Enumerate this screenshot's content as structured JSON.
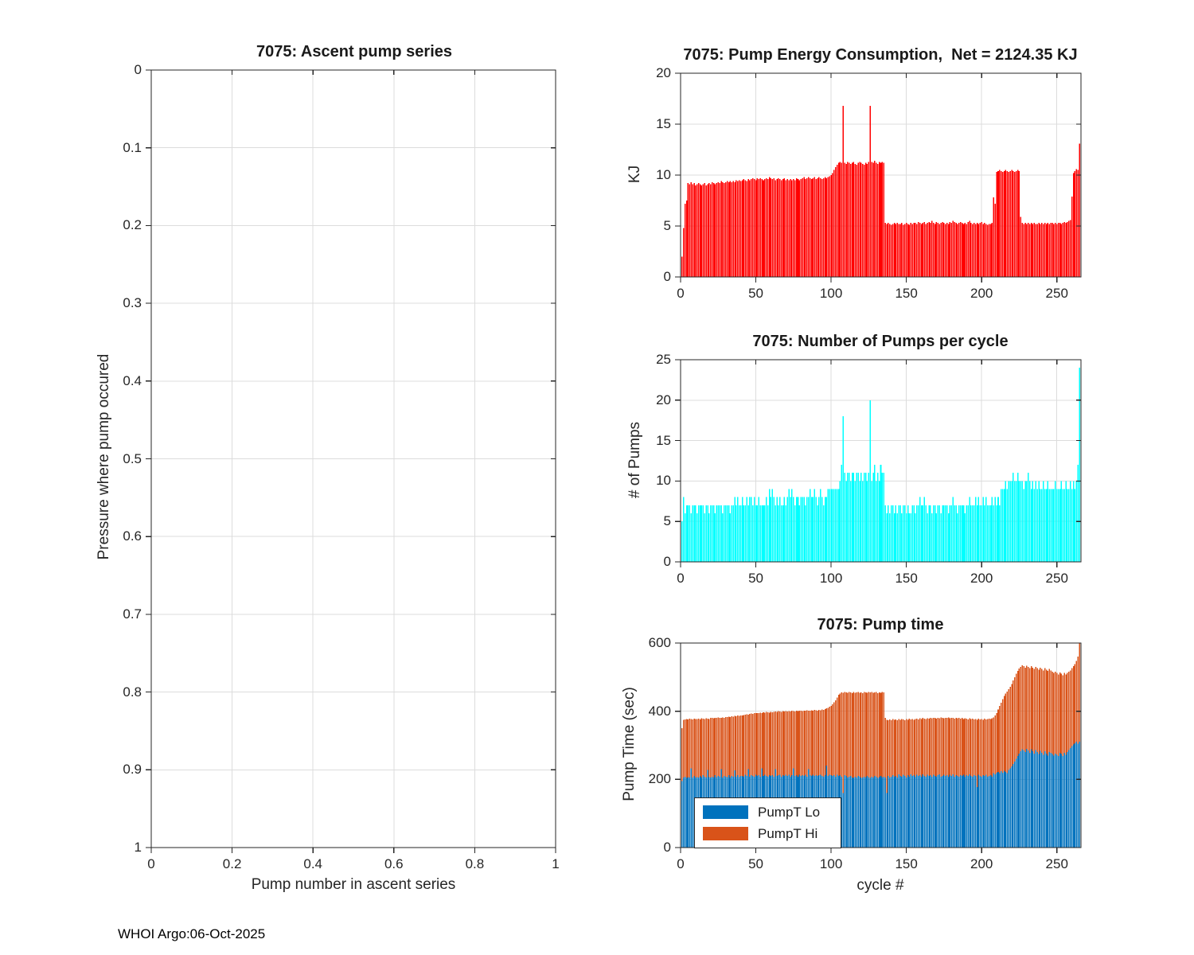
{
  "figure": {
    "footer": "WHOI Argo:06-Oct-2025",
    "colors": {
      "red": "#FF0000",
      "cyan": "#00FFFF",
      "blue": "#0072BD",
      "orange": "#D95319",
      "grid": "#DCDCDC",
      "axis": "#262626",
      "background": "#FFFFFF"
    }
  },
  "chart_data": [
    {
      "id": "ascent",
      "type": "bar",
      "title": "7075: Ascent pump series",
      "xlabel": "Pump number in ascent series",
      "ylabel": "Pressure where pump occured",
      "xlim": [
        0,
        1
      ],
      "ylim": [
        0,
        1
      ],
      "y_reversed": true,
      "grid": true,
      "xticks": [
        0,
        0.2,
        0.4,
        0.6,
        0.8,
        1
      ],
      "xtick_labels": [
        "0",
        "0.2",
        "0.4",
        "0.6",
        "0.8",
        "1"
      ],
      "yticks": [
        0,
        0.1,
        0.2,
        0.3,
        0.4,
        0.5,
        0.6,
        0.7,
        0.8,
        0.9,
        1
      ],
      "ytick_labels": [
        "0",
        "0.1",
        "0.2",
        "0.3",
        "0.4",
        "0.5",
        "0.6",
        "0.7",
        "0.8",
        "0.9",
        "1"
      ],
      "values": []
    },
    {
      "id": "energy",
      "type": "bar",
      "title": "7075: Pump Energy Consumption,  Net = 2124.35 KJ",
      "net_kj": 2124.35,
      "xlabel": "",
      "ylabel": "KJ",
      "xlim": [
        0,
        266
      ],
      "ylim": [
        0,
        20
      ],
      "grid": true,
      "bar_color": "#FF0000",
      "xticks": [
        0,
        50,
        100,
        150,
        200,
        250
      ],
      "xtick_labels": [
        "0",
        "50",
        "100",
        "150",
        "200",
        "250"
      ],
      "yticks": [
        0,
        5,
        10,
        15,
        20
      ],
      "ytick_labels": [
        "0",
        "5",
        "10",
        "15",
        "20"
      ],
      "values": [
        2.0,
        4.8,
        7.2,
        7.5,
        9.2,
        9.1,
        9.3,
        9.1,
        9.2,
        9.0,
        9.1,
        9.2,
        9.1,
        9.0,
        9.1,
        9.2,
        9.0,
        9.1,
        9.2,
        9.1,
        9.3,
        9.2,
        9.1,
        9.2,
        9.3,
        9.2,
        9.4,
        9.3,
        9.2,
        9.3,
        9.4,
        9.3,
        9.4,
        9.3,
        9.4,
        9.3,
        9.5,
        9.4,
        9.5,
        9.4,
        9.5,
        9.6,
        9.5,
        9.4,
        9.6,
        9.5,
        9.6,
        9.7,
        9.6,
        9.5,
        9.7,
        9.6,
        9.7,
        9.6,
        9.5,
        9.6,
        9.7,
        9.6,
        9.8,
        9.7,
        9.6,
        9.7,
        9.5,
        9.6,
        9.7,
        9.6,
        9.5,
        9.6,
        9.7,
        9.5,
        9.6,
        9.5,
        9.6,
        9.5,
        9.6,
        9.5,
        9.7,
        9.6,
        9.5,
        9.6,
        9.7,
        9.8,
        9.6,
        9.7,
        9.8,
        9.7,
        9.6,
        9.7,
        9.8,
        9.6,
        9.7,
        9.8,
        9.7,
        9.6,
        9.7,
        9.8,
        9.7,
        9.8,
        9.9,
        10.0,
        10.2,
        10.5,
        10.8,
        11.0,
        11.2,
        11.3,
        11.2,
        16.8,
        11.2,
        11.1,
        11.3,
        11.2,
        11.1,
        11.2,
        11.3,
        11.1,
        11.0,
        11.2,
        11.3,
        11.2,
        11.1,
        11.0,
        11.2,
        11.1,
        11.3,
        16.8,
        11.3,
        11.2,
        11.4,
        11.2,
        11.1,
        11.3,
        11.2,
        11.3,
        11.2,
        5.3,
        5.2,
        5.3,
        5.2,
        5.1,
        5.2,
        5.3,
        5.2,
        5.3,
        5.2,
        5.2,
        5.3,
        5.1,
        5.2,
        5.3,
        5.2,
        5.1,
        5.3,
        5.2,
        5.3,
        5.3,
        5.2,
        5.4,
        5.3,
        5.2,
        5.3,
        5.4,
        5.2,
        5.3,
        5.4,
        5.3,
        5.5,
        5.3,
        5.2,
        5.4,
        5.3,
        5.2,
        5.3,
        5.4,
        5.3,
        5.2,
        5.3,
        5.2,
        5.4,
        5.3,
        5.5,
        5.4,
        5.3,
        5.2,
        5.3,
        5.4,
        5.3,
        5.2,
        5.3,
        5.2,
        5.4,
        5.5,
        5.3,
        5.2,
        5.3,
        5.2,
        5.3,
        5.2,
        5.3,
        5.4,
        5.2,
        5.3,
        5.2,
        5.1,
        5.2,
        5.2,
        5.3,
        7.8,
        7.2,
        10.3,
        10.4,
        10.5,
        10.4,
        10.3,
        10.4,
        10.5,
        10.4,
        10.3,
        10.4,
        10.5,
        10.4,
        10.3,
        10.4,
        10.5,
        10.4,
        5.9,
        5.3,
        5.2,
        5.3,
        5.2,
        5.3,
        5.2,
        5.3,
        5.2,
        5.3,
        5.2,
        5.2,
        5.3,
        5.2,
        5.3,
        5.2,
        5.3,
        5.2,
        5.3,
        5.2,
        5.3,
        5.3,
        5.2,
        5.3,
        5.2,
        5.3,
        5.3,
        5.2,
        5.3,
        5.4,
        5.3,
        5.4,
        5.5,
        5.6,
        7.9,
        10.2,
        10.4,
        10.6,
        10.5,
        13.1
      ]
    },
    {
      "id": "pumps",
      "type": "bar",
      "title": "7075: Number of Pumps per cycle",
      "xlabel": "",
      "ylabel": "# of Pumps",
      "xlim": [
        0,
        266
      ],
      "ylim": [
        0,
        25
      ],
      "grid": true,
      "bar_color": "#00FFFF",
      "xticks": [
        0,
        50,
        100,
        150,
        200,
        250
      ],
      "xtick_labels": [
        "0",
        "50",
        "100",
        "150",
        "200",
        "250"
      ],
      "yticks": [
        0,
        5,
        10,
        15,
        20,
        25
      ],
      "ytick_labels": [
        "0",
        "5",
        "10",
        "15",
        "20",
        "25"
      ],
      "values": [
        5,
        8,
        6,
        7,
        7,
        7,
        6,
        7,
        7,
        7,
        6,
        7,
        7,
        7,
        7,
        6,
        7,
        7,
        6,
        7,
        7,
        7,
        6,
        7,
        7,
        7,
        7,
        6,
        7,
        7,
        7,
        7,
        6,
        7,
        7,
        8,
        7,
        8,
        7,
        7,
        8,
        7,
        7,
        8,
        7,
        8,
        8,
        7,
        8,
        7,
        7,
        8,
        7,
        7,
        7,
        7,
        8,
        7,
        9,
        8,
        9,
        8,
        7,
        8,
        7,
        8,
        7,
        7,
        8,
        7,
        8,
        9,
        8,
        9,
        8,
        7,
        8,
        8,
        7,
        8,
        8,
        8,
        7,
        8,
        8,
        9,
        8,
        8,
        9,
        8,
        7,
        8,
        9,
        8,
        7,
        8,
        8,
        9,
        9,
        9,
        9,
        9,
        9,
        9,
        9,
        10,
        12,
        18,
        11,
        10,
        11,
        11,
        10,
        11,
        11,
        10,
        11,
        11,
        10,
        11,
        10,
        11,
        11,
        10,
        11,
        20,
        10,
        11,
        12,
        10,
        11,
        10,
        12,
        11,
        11,
        7,
        6,
        7,
        6,
        7,
        7,
        6,
        7,
        6,
        7,
        7,
        6,
        7,
        7,
        6,
        7,
        6,
        6,
        7,
        7,
        6,
        7,
        7,
        8,
        7,
        7,
        8,
        7,
        6,
        7,
        7,
        6,
        7,
        7,
        6,
        7,
        7,
        6,
        7,
        7,
        7,
        7,
        6,
        7,
        7,
        8,
        7,
        7,
        6,
        7,
        7,
        7,
        7,
        6,
        7,
        7,
        8,
        7,
        7,
        7,
        8,
        7,
        8,
        7,
        7,
        8,
        7,
        8,
        7,
        7,
        7,
        8,
        7,
        8,
        7,
        8,
        7,
        9,
        9,
        9,
        10,
        9,
        10,
        10,
        10,
        11,
        10,
        10,
        11,
        10,
        10,
        10,
        9,
        10,
        10,
        11,
        10,
        9,
        10,
        9,
        10,
        9,
        10,
        9,
        9,
        10,
        9,
        9,
        10,
        9,
        9,
        9,
        9,
        10,
        9,
        9,
        9,
        10,
        9,
        9,
        10,
        9,
        9,
        10,
        9,
        10,
        9,
        10,
        12,
        24
      ]
    },
    {
      "id": "pumptime",
      "type": "stacked",
      "title": "7075: Pump time",
      "xlabel": "cycle #",
      "ylabel": "Pump Time (sec)",
      "xlim": [
        0,
        266
      ],
      "ylim": [
        0,
        600
      ],
      "grid": true,
      "xticks": [
        0,
        50,
        100,
        150,
        200,
        250
      ],
      "xtick_labels": [
        "0",
        "50",
        "100",
        "150",
        "200",
        "250"
      ],
      "yticks": [
        0,
        200,
        400,
        600
      ],
      "ytick_labels": [
        "0",
        "200",
        "400",
        "600"
      ],
      "legend": {
        "position": "lower-left",
        "entries": [
          "PumpT Lo",
          "PumpT Hi"
        ]
      },
      "series": [
        {
          "name": "PumpT Lo",
          "color": "#0072BD",
          "values": [
            195,
            205,
            208,
            204,
            207,
            205,
            232,
            206,
            210,
            205,
            207,
            206,
            210,
            205,
            212,
            208,
            206,
            228,
            207,
            205,
            208,
            206,
            212,
            207,
            210,
            208,
            230,
            206,
            210,
            208,
            207,
            212,
            206,
            210,
            208,
            226,
            208,
            212,
            207,
            210,
            210,
            208,
            214,
            210,
            230,
            208,
            212,
            210,
            208,
            214,
            210,
            212,
            208,
            232,
            210,
            214,
            210,
            208,
            212,
            210,
            212,
            208,
            230,
            210,
            212,
            214,
            208,
            212,
            210,
            214,
            210,
            214,
            208,
            212,
            232,
            210,
            212,
            208,
            214,
            210,
            212,
            210,
            214,
            208,
            230,
            212,
            210,
            214,
            210,
            212,
            210,
            212,
            214,
            210,
            208,
            212,
            240,
            210,
            214,
            212,
            210,
            212,
            208,
            214,
            210,
            212,
            208,
            160,
            212,
            210,
            205,
            208,
            210,
            206,
            204,
            208,
            206,
            210,
            208,
            204,
            206,
            208,
            205,
            210,
            207,
            204,
            208,
            206,
            210,
            208,
            204,
            207,
            210,
            206,
            208,
            205,
            160,
            210,
            206,
            208,
            212,
            208,
            210,
            206,
            215,
            210,
            208,
            214,
            210,
            206,
            212,
            208,
            215,
            210,
            212,
            208,
            214,
            210,
            212,
            208,
            215,
            210,
            208,
            214,
            210,
            212,
            208,
            214,
            210,
            208,
            212,
            215,
            208,
            210,
            214,
            210,
            212,
            208,
            214,
            210,
            215,
            208,
            212,
            210,
            208,
            212,
            210,
            214,
            208,
            212,
            210,
            215,
            210,
            208,
            212,
            210,
            178,
            214,
            210,
            208,
            212,
            210,
            214,
            208,
            210,
            212,
            208,
            218,
            215,
            220,
            222,
            218,
            224,
            220,
            225,
            222,
            218,
            228,
            232,
            238,
            245,
            252,
            260,
            268,
            275,
            282,
            288,
            285,
            280,
            290,
            285,
            278,
            288,
            282,
            276,
            286,
            280,
            274,
            284,
            278,
            272,
            282,
            276,
            270,
            280,
            278,
            274,
            270,
            276,
            272,
            268,
            278,
            274,
            268,
            278,
            272,
            280,
            286,
            292,
            298,
            302,
            306,
            310,
            305,
            310
          ]
        },
        {
          "name": "PumpT Hi",
          "color": "#D95319",
          "values": [
            155,
            170,
            168,
            173,
            169,
            173,
            145,
            170,
            168,
            172,
            170,
            172,
            166,
            174,
            166,
            169,
            173,
            150,
            170,
            175,
            172,
            173,
            169,
            173,
            172,
            173,
            150,
            176,
            171,
            175,
            176,
            172,
            177,
            175,
            176,
            160,
            177,
            175,
            179,
            178,
            178,
            181,
            176,
            181,
            160,
            184,
            181,
            182,
            186,
            181,
            184,
            183,
            188,
            163,
            187,
            182,
            188,
            189,
            184,
            188,
            185,
            190,
            169,
            188,
            188,
            185,
            190,
            188,
            189,
            186,
            189,
            186,
            191,
            189,
            168,
            189,
            189,
            192,
            188,
            191,
            188,
            192,
            187,
            195,
            172,
            189,
            193,
            188,
            194,
            191,
            192,
            192,
            189,
            195,
            196,
            194,
            168,
            200,
            199,
            204,
            210,
            214,
            224,
            226,
            238,
            240,
            247,
            294,
            244,
            245,
            249,
            248,
            245,
            247,
            252,
            246,
            249,
            246,
            246,
            251,
            247,
            248,
            250,
            244,
            249,
            251,
            248,
            248,
            245,
            248,
            249,
            248,
            244,
            250,
            247,
            175,
            215,
            163,
            170,
            166,
            165,
            167,
            166,
            168,
            162,
            165,
            169,
            162,
            164,
            171,
            163,
            170,
            161,
            167,
            163,
            169,
            164,
            166,
            167,
            169,
            165,
            168,
            169,
            165,
            168,
            168,
            171,
            167,
            170,
            170,
            169,
            164,
            174,
            170,
            165,
            171,
            168,
            174,
            165,
            171,
            165,
            170,
            169,
            169,
            172,
            166,
            170,
            163,
            171,
            166,
            166,
            164,
            167,
            170,
            164,
            167,
            197,
            164,
            166,
            169,
            163,
            168,
            162,
            169,
            168,
            165,
            171,
            164,
            173,
            175,
            183,
            197,
            201,
            215,
            220,
            230,
            240,
            237,
            240,
            242,
            245,
            248,
            250,
            250,
            250,
            248,
            247,
            247,
            248,
            244,
            245,
            248,
            244,
            246,
            248,
            244,
            246,
            248,
            244,
            246,
            248,
            244,
            246,
            248,
            244,
            242,
            242,
            242,
            240,
            240,
            240,
            236,
            236,
            238,
            234,
            236,
            232,
            230,
            228,
            228,
            230,
            232,
            238,
            255,
            290
          ]
        }
      ]
    }
  ]
}
